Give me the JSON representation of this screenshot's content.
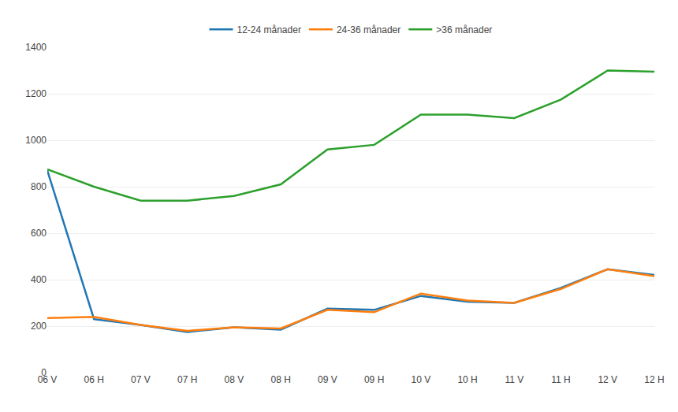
{
  "chart_data": {
    "type": "line",
    "categories": [
      "06 V",
      "06 H",
      "07 V",
      "07 H",
      "08 V",
      "08 H",
      "09 V",
      "09 H",
      "10 V",
      "10 H",
      "11 V",
      "11 H",
      "12 V",
      "12 H"
    ],
    "series": [
      {
        "name": "12-24 månader",
        "values": [
          870,
          230,
          205,
          175,
          195,
          185,
          275,
          270,
          330,
          305,
          300,
          365,
          445,
          420
        ]
      },
      {
        "name": "24-36 månader",
        "values": [
          235,
          240,
          205,
          180,
          195,
          190,
          270,
          260,
          340,
          310,
          300,
          360,
          445,
          415
        ]
      },
      {
        "name": ">36 månader",
        "values": [
          875,
          800,
          740,
          740,
          760,
          810,
          960,
          980,
          1110,
          1110,
          1095,
          1175,
          1300,
          1295
        ]
      }
    ],
    "ylim": [
      0,
      1400
    ],
    "yticks": [
      0,
      200,
      400,
      600,
      800,
      1000,
      1200,
      1400
    ],
    "grid": true,
    "legend": "top"
  }
}
